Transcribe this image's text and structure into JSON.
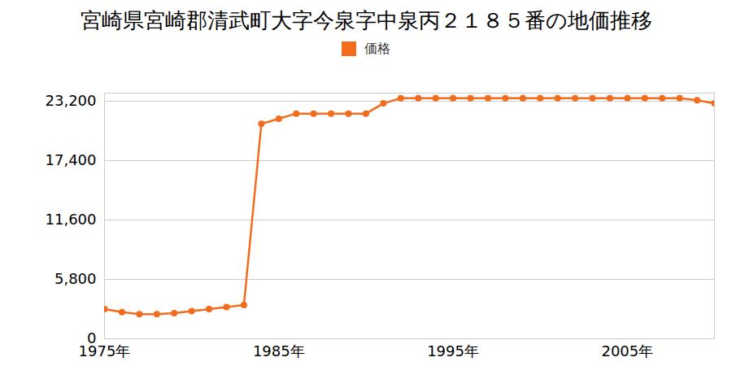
{
  "chart_data": {
    "type": "line",
    "title": "宮崎県宮崎郡清武町大字今泉字中泉丙２１８５番の地価推移",
    "x": [
      1975,
      1976,
      1977,
      1978,
      1979,
      1980,
      1981,
      1982,
      1983,
      1984,
      1985,
      1986,
      1987,
      1988,
      1989,
      1990,
      1991,
      1992,
      1993,
      1994,
      1995,
      1996,
      1997,
      1998,
      1999,
      2000,
      2001,
      2002,
      2003,
      2004,
      2005,
      2006,
      2007,
      2008,
      2009,
      2010
    ],
    "series": [
      {
        "name": "価格",
        "color": "#f36b1c",
        "marker": "circle",
        "values": [
          2900,
          2600,
          2400,
          2400,
          2500,
          2700,
          2900,
          3100,
          3300,
          21000,
          21500,
          22000,
          22000,
          22000,
          22000,
          22000,
          23000,
          23500,
          23500,
          23500,
          23500,
          23500,
          23500,
          23500,
          23500,
          23500,
          23500,
          23500,
          23500,
          23500,
          23500,
          23500,
          23500,
          23500,
          23300,
          23000
        ]
      }
    ],
    "xlim": [
      1975,
      2010
    ],
    "xticks": [
      {
        "value": 1975,
        "label": "1975年"
      },
      {
        "value": 1985,
        "label": "1985年"
      },
      {
        "value": 1995,
        "label": "1995年"
      },
      {
        "value": 2005,
        "label": "2005年"
      }
    ],
    "ylim": [
      0,
      24000
    ],
    "yticks": [
      0,
      {
        "value": 5800,
        "label": "5,800"
      },
      {
        "value": 11600,
        "label": "11,600"
      },
      {
        "value": 17400,
        "label": "17,400"
      },
      {
        "value": 23200,
        "label": "23,200"
      }
    ],
    "grid": true,
    "legend": "top"
  }
}
